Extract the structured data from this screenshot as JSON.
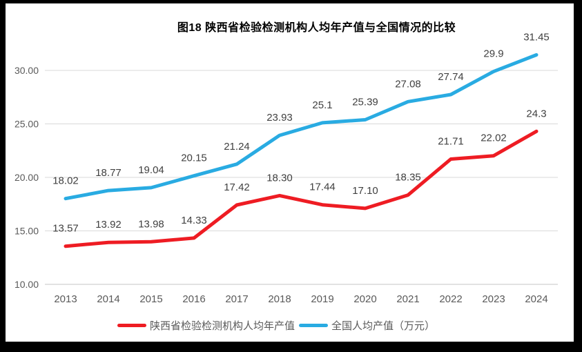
{
  "chart_data": {
    "type": "line",
    "title": "图18 陕西省检验检测机构人均年产值与全国情况的比较",
    "categories": [
      "2013",
      "2014",
      "2015",
      "2016",
      "2017",
      "2018",
      "2019",
      "2020",
      "2021",
      "2022",
      "2023",
      "2024"
    ],
    "series": [
      {
        "name": "陕西省检验检测机构人均年产值",
        "color": "#EE1C23",
        "values": [
          13.57,
          13.92,
          13.98,
          14.33,
          17.42,
          18.3,
          17.44,
          17.1,
          18.35,
          21.71,
          22.02,
          24.3
        ],
        "labels": [
          "13.57",
          "13.92",
          "13.98",
          "14.33",
          "17.42",
          "18.30",
          "17.44",
          "17.10",
          "18.35",
          "21.71",
          "22.02",
          "24.3"
        ]
      },
      {
        "name": "全国人均产值（万元）",
        "color": "#29ABE2",
        "values": [
          18.02,
          18.77,
          19.04,
          20.15,
          21.24,
          23.93,
          25.1,
          25.39,
          27.08,
          27.74,
          29.9,
          31.45
        ],
        "labels": [
          "18.02",
          "18.77",
          "19.04",
          "20.15",
          "21.24",
          "23.93",
          "25.1",
          "25.39",
          "27.08",
          "27.74",
          "29.9",
          "31.45"
        ]
      }
    ],
    "ylim": [
      10,
      30
    ],
    "yticks": [
      "10.00",
      "15.00",
      "20.00",
      "25.00",
      "30.00"
    ],
    "xlabel": "",
    "ylabel": "",
    "grid": true,
    "legend_position": "bottom",
    "colors": {
      "gridline": "#D9D9D9",
      "axis_line": "#C6C6C6",
      "tick_text": "#595959",
      "data_label_text": "#404040",
      "title_text": "#000000",
      "frame_border": "#000000",
      "plot_background": "#FFFFFF"
    }
  }
}
